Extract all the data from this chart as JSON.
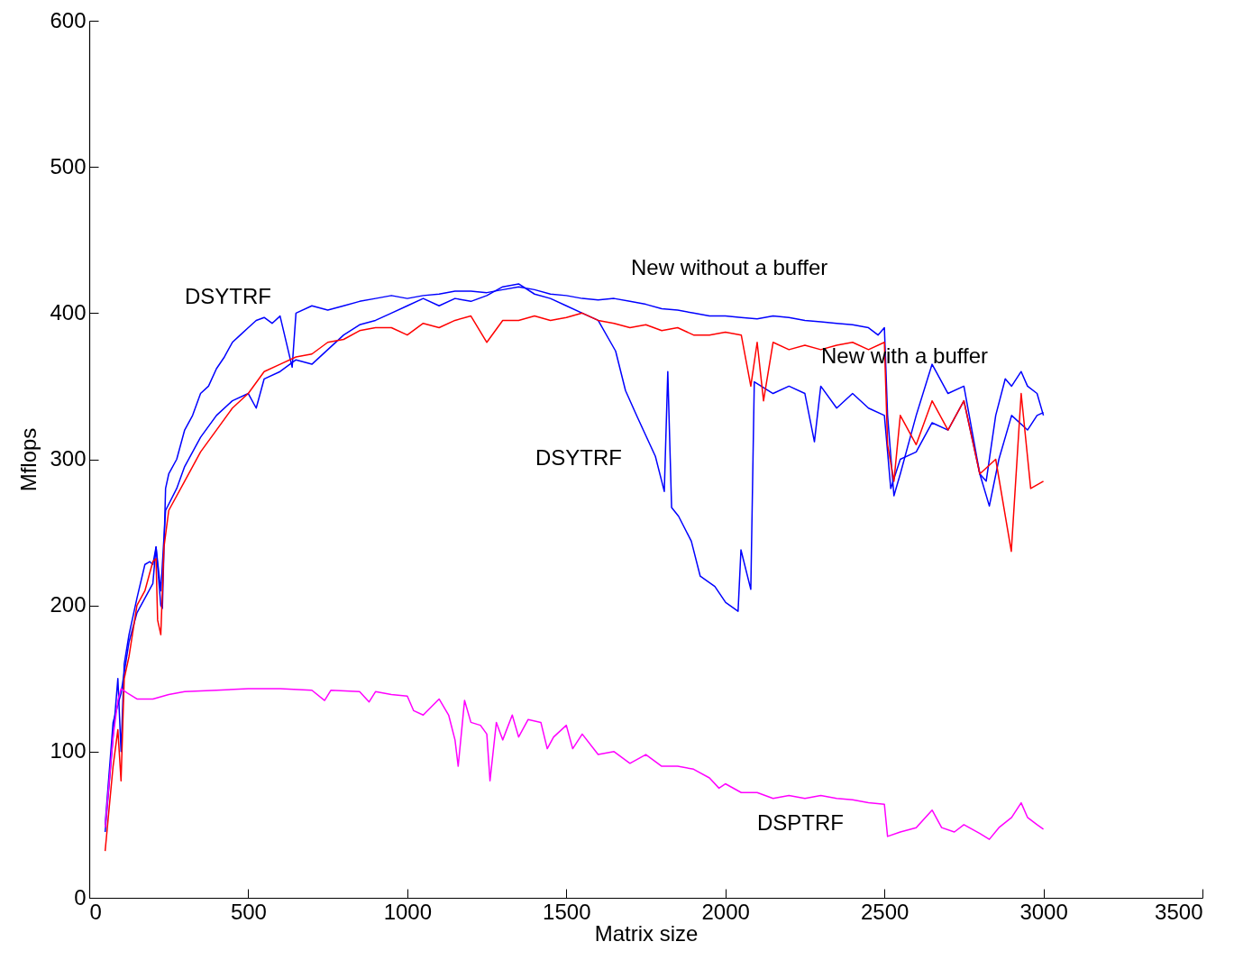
{
  "chart_data": {
    "type": "line",
    "xlabel": "Matrix size",
    "ylabel": "Mflops",
    "xlim": [
      0,
      3500
    ],
    "xticks": [
      0,
      500,
      1000,
      1500,
      2000,
      2500,
      3000,
      3500
    ],
    "ylim": [
      0,
      600
    ],
    "yticks": [
      0,
      100,
      200,
      300,
      400,
      500,
      600
    ],
    "grid": false,
    "marker": "none",
    "line_style": "solid",
    "series": [
      {
        "color": "#0000ff",
        "x": [
          50,
          75,
          90,
          100,
          110,
          125,
          150,
          175,
          190,
          200,
          210,
          225,
          230,
          240,
          250,
          275,
          300,
          325,
          350,
          375,
          400,
          425,
          450,
          475,
          500,
          525,
          550,
          575,
          600,
          638,
          650,
          700,
          750,
          800,
          850,
          900,
          950,
          1000,
          1050,
          1100,
          1150,
          1200,
          1250,
          1300,
          1350,
          1400,
          1450,
          1500,
          1550,
          1600,
          1650,
          1700,
          1750,
          1800,
          1850,
          1900,
          1950,
          2000,
          2050,
          2100,
          2150,
          2200,
          2250,
          2300,
          2350,
          2400,
          2450,
          2480,
          2500,
          2510,
          2530,
          2550,
          2600,
          2650,
          2700,
          2750,
          2800,
          2820,
          2850,
          2880,
          2900,
          2930,
          2950,
          2980,
          3000
        ],
        "values": [
          45,
          110,
          150,
          100,
          160,
          180,
          205,
          228,
          230,
          228,
          240,
          200,
          198,
          280,
          290,
          300,
          320,
          330,
          345,
          350,
          362,
          370,
          380,
          385,
          390,
          395,
          397,
          393,
          398,
          363,
          400,
          405,
          402,
          405,
          408,
          410,
          412,
          410,
          412,
          413,
          415,
          415,
          414,
          416,
          418,
          416,
          413,
          412,
          410,
          409,
          410,
          408,
          406,
          403,
          402,
          400,
          398,
          398,
          397,
          396,
          398,
          397,
          395,
          394,
          393,
          392,
          390,
          385,
          390,
          330,
          275,
          290,
          330,
          365,
          345,
          350,
          290,
          285,
          330,
          355,
          350,
          360,
          350,
          345,
          330
        ]
      },
      {
        "color": "#0000ff",
        "x": [
          50,
          75,
          100,
          125,
          150,
          200,
          210,
          225,
          240,
          275,
          300,
          350,
          400,
          450,
          500,
          525,
          550,
          600,
          650,
          700,
          750,
          800,
          850,
          900,
          950,
          1000,
          1050,
          1100,
          1150,
          1200,
          1250,
          1300,
          1350,
          1400,
          1450,
          1500,
          1550,
          1600,
          1655,
          1686,
          1723,
          1780,
          1808,
          1819,
          1831,
          1853,
          1893,
          1921,
          1967,
          2001,
          2040,
          2049,
          2080,
          2091,
          2150,
          2200,
          2250,
          2280,
          2300,
          2350,
          2400,
          2450,
          2500,
          2520,
          2550,
          2600,
          2650,
          2700,
          2750,
          2800,
          2830,
          2860,
          2900,
          2950,
          2980,
          3000
        ],
        "values": [
          50,
          120,
          140,
          175,
          195,
          215,
          240,
          210,
          265,
          280,
          295,
          315,
          330,
          340,
          345,
          335,
          355,
          360,
          368,
          365,
          375,
          385,
          392,
          395,
          400,
          405,
          410,
          405,
          410,
          408,
          412,
          418,
          420,
          413,
          410,
          405,
          400,
          395,
          374,
          347,
          329,
          302,
          278,
          360,
          267,
          261,
          244,
          220,
          213,
          202,
          196,
          238,
          211,
          353,
          345,
          350,
          345,
          312,
          350,
          335,
          345,
          335,
          330,
          280,
          300,
          305,
          325,
          320,
          340,
          290,
          268,
          300,
          330,
          320,
          330,
          332
        ]
      },
      {
        "color": "#ff0000",
        "x": [
          50,
          75,
          90,
          100,
          110,
          125,
          150,
          175,
          200,
          210,
          215,
          225,
          235,
          250,
          300,
          350,
          400,
          450,
          500,
          550,
          600,
          650,
          700,
          750,
          800,
          850,
          900,
          950,
          1000,
          1050,
          1100,
          1150,
          1200,
          1250,
          1300,
          1350,
          1400,
          1450,
          1500,
          1550,
          1600,
          1650,
          1700,
          1750,
          1800,
          1850,
          1900,
          1950,
          2000,
          2050,
          2080,
          2100,
          2120,
          2150,
          2200,
          2250,
          2300,
          2350,
          2400,
          2450,
          2500,
          2510,
          2530,
          2550,
          2600,
          2650,
          2700,
          2750,
          2800,
          2850,
          2899,
          2930,
          2960,
          3000
        ],
        "values": [
          32,
          90,
          115,
          80,
          150,
          165,
          200,
          210,
          230,
          232,
          190,
          180,
          240,
          265,
          285,
          305,
          320,
          335,
          345,
          360,
          365,
          370,
          372,
          380,
          382,
          388,
          390,
          390,
          385,
          393,
          390,
          395,
          398,
          380,
          395,
          395,
          398,
          395,
          397,
          400,
          395,
          393,
          390,
          392,
          388,
          390,
          385,
          385,
          387,
          385,
          350,
          380,
          340,
          380,
          375,
          378,
          375,
          378,
          380,
          375,
          380,
          310,
          285,
          330,
          310,
          340,
          320,
          340,
          290,
          300,
          237,
          345,
          280,
          285
        ]
      },
      {
        "color": "#ff00ff",
        "x": [
          50,
          75,
          90,
          100,
          120,
          150,
          200,
          250,
          300,
          400,
          500,
          600,
          700,
          740,
          760,
          850,
          880,
          900,
          950,
          1000,
          1020,
          1050,
          1100,
          1130,
          1150,
          1160,
          1180,
          1200,
          1230,
          1250,
          1260,
          1280,
          1300,
          1330,
          1350,
          1380,
          1420,
          1440,
          1460,
          1500,
          1520,
          1550,
          1600,
          1650,
          1700,
          1750,
          1800,
          1850,
          1900,
          1950,
          1980,
          2000,
          2050,
          2100,
          2150,
          2200,
          2250,
          2300,
          2350,
          2400,
          2450,
          2500,
          2510,
          2550,
          2600,
          2650,
          2680,
          2720,
          2750,
          2800,
          2830,
          2860,
          2900,
          2930,
          2950,
          2980,
          3000
        ],
        "values": [
          48,
          110,
          135,
          143,
          140,
          136,
          136,
          139,
          141,
          142,
          143,
          143,
          142,
          135,
          142,
          141,
          134,
          141,
          139,
          138,
          128,
          125,
          136,
          125,
          108,
          90,
          135,
          120,
          118,
          112,
          80,
          120,
          108,
          125,
          110,
          122,
          120,
          102,
          110,
          118,
          102,
          112,
          98,
          100,
          92,
          98,
          90,
          90,
          88,
          82,
          75,
          78,
          72,
          72,
          68,
          70,
          68,
          70,
          68,
          67,
          65,
          64,
          42,
          45,
          48,
          60,
          48,
          45,
          50,
          44,
          40,
          48,
          55,
          65,
          55,
          50,
          47
        ]
      }
    ],
    "annotations": [
      "DSYTRF",
      "New without a buffer",
      "New with a buffer",
      "DSYTRF",
      "DSPTRF"
    ]
  }
}
